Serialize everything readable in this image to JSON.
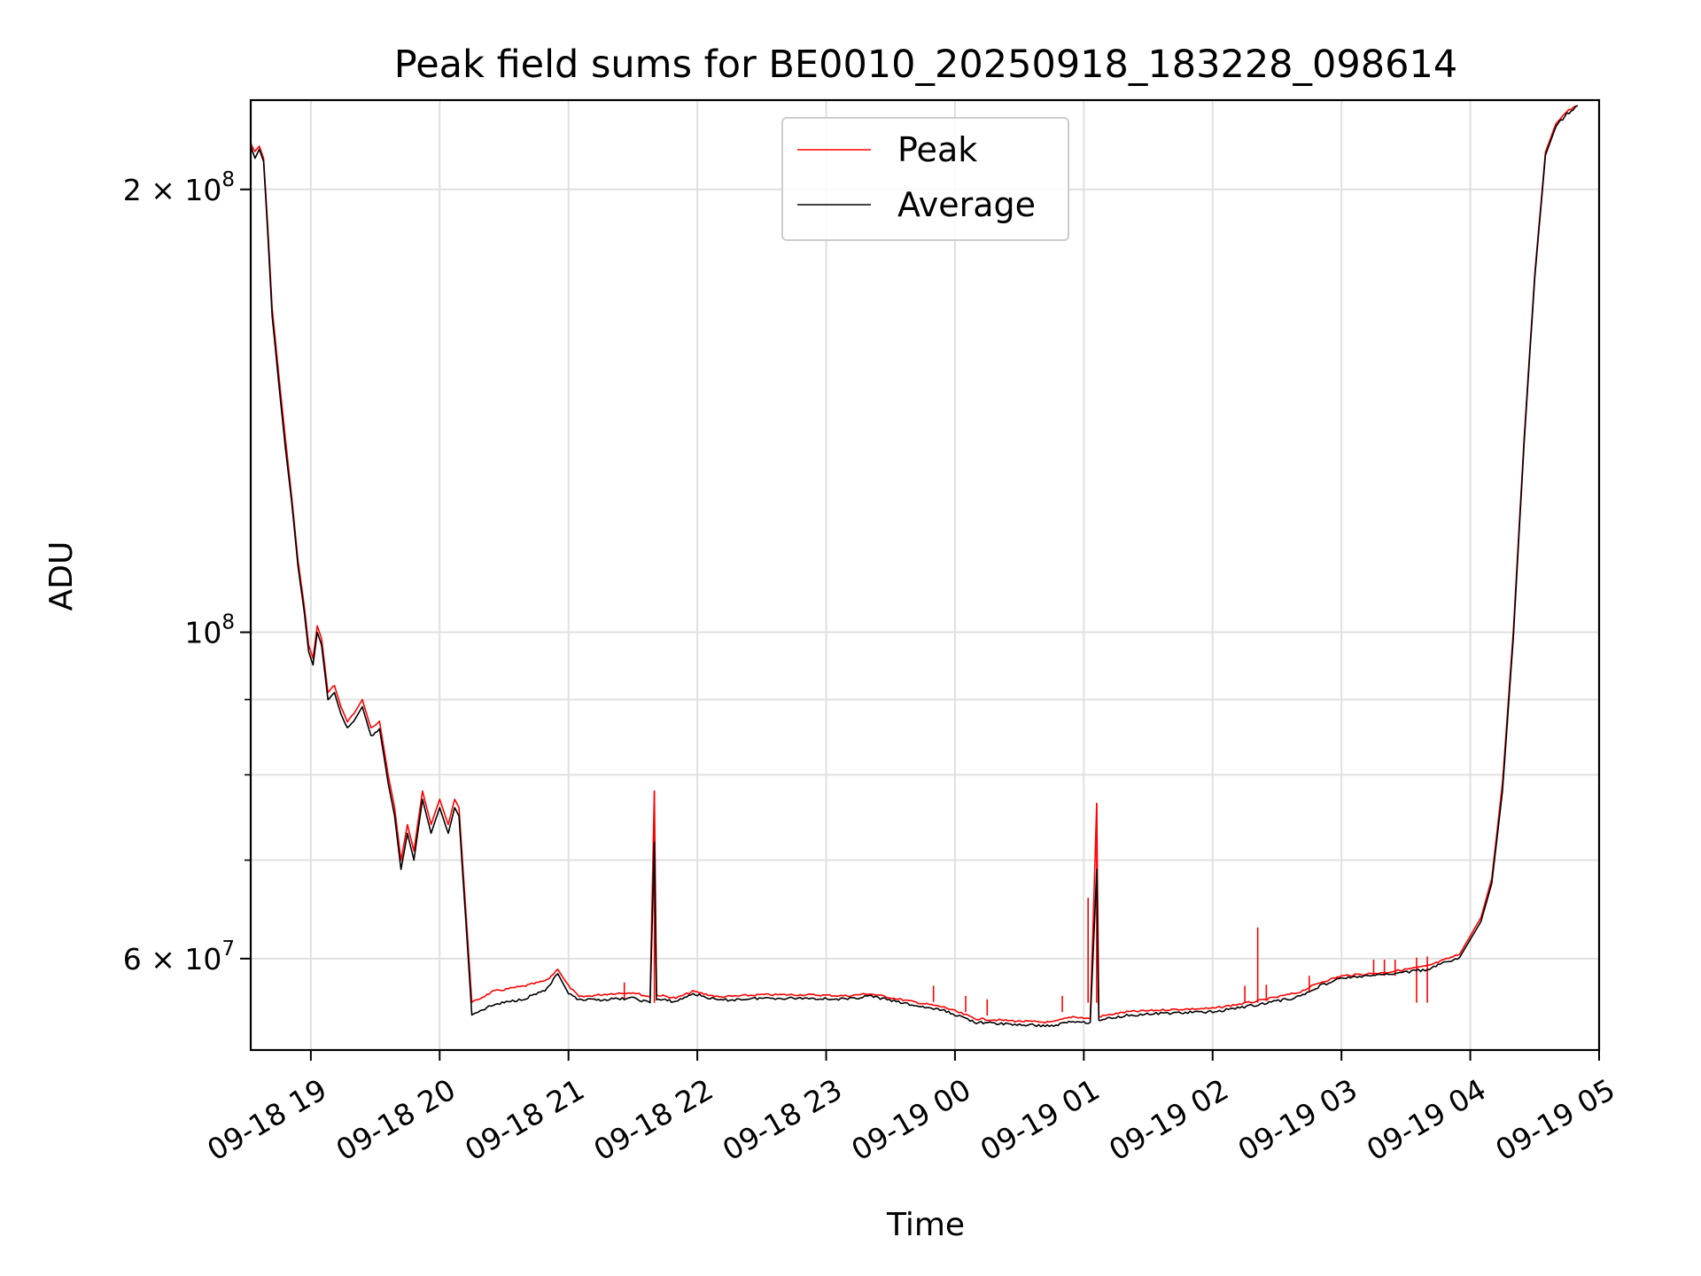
{
  "chart_data": {
    "type": "line",
    "title": "Peak field sums for BE0010_20250918_183228_098614",
    "xlabel": "Time",
    "ylabel": "ADU",
    "y_scale": "log",
    "ylim": [
      52000000,
      230000000
    ],
    "xlim": [
      "09-18 18:32",
      "09-19 05:00"
    ],
    "grid": true,
    "legend_position": "upper center",
    "x_ticks": [
      "09-18 19",
      "09-18 20",
      "09-18 21",
      "09-18 22",
      "09-18 23",
      "09-19 00",
      "09-19 01",
      "09-19 02",
      "09-19 03",
      "09-19 04",
      "09-19 05"
    ],
    "y_ticks": [
      {
        "value": 200000000,
        "label_main": "2 × 10",
        "label_exp": "8"
      },
      {
        "value": 100000000,
        "label_main": "10",
        "label_exp": "8"
      },
      {
        "value": 60000000,
        "label_main": "6 × 10",
        "label_exp": "7"
      }
    ],
    "y_minor_ticks": [
      70000000,
      80000000,
      90000000
    ],
    "series": [
      {
        "name": "Peak",
        "color": "#ff0000",
        "points": [
          [
            "09-18 18:32",
            215000000
          ],
          [
            "09-18 18:34",
            212000000
          ],
          [
            "09-18 18:36",
            214000000
          ],
          [
            "09-18 18:38",
            210000000
          ],
          [
            "09-18 18:40",
            188000000
          ],
          [
            "09-18 18:42",
            166000000
          ],
          [
            "09-18 18:45",
            150000000
          ],
          [
            "09-18 18:48",
            136000000
          ],
          [
            "09-18 18:51",
            124000000
          ],
          [
            "09-18 18:54",
            112000000
          ],
          [
            "09-18 18:57",
            104000000
          ],
          [
            "09-18 18:59",
            98000000
          ],
          [
            "09-18 19:01",
            96000000
          ],
          [
            "09-18 19:03",
            101000000
          ],
          [
            "09-18 19:05",
            99000000
          ],
          [
            "09-18 19:08",
            91000000
          ],
          [
            "09-18 19:11",
            92000000
          ],
          [
            "09-18 19:14",
            89000000
          ],
          [
            "09-18 19:17",
            87000000
          ],
          [
            "09-18 19:20",
            88000000
          ],
          [
            "09-18 19:24",
            90000000
          ],
          [
            "09-18 19:28",
            86000000
          ],
          [
            "09-18 19:32",
            87000000
          ],
          [
            "09-18 19:36",
            80000000
          ],
          [
            "09-18 19:39",
            76000000
          ],
          [
            "09-18 19:42",
            70000000
          ],
          [
            "09-18 19:45",
            74000000
          ],
          [
            "09-18 19:48",
            71000000
          ],
          [
            "09-18 19:52",
            78000000
          ],
          [
            "09-18 19:56",
            74000000
          ],
          [
            "09-18 20:00",
            77000000
          ],
          [
            "09-18 20:04",
            74000000
          ],
          [
            "09-18 20:07",
            77000000
          ],
          [
            "09-18 20:09",
            76000000
          ],
          [
            "09-18 20:15",
            56000000
          ],
          [
            "09-18 20:25",
            57000000
          ],
          [
            "09-18 20:40",
            57500000
          ],
          [
            "09-18 20:50",
            58000000
          ],
          [
            "09-18 20:55",
            59000000
          ],
          [
            "09-18 21:00",
            57500000
          ],
          [
            "09-18 21:05",
            56500000
          ],
          [
            "09-18 21:20",
            56800000
          ],
          [
            "09-18 21:30",
            56900000
          ],
          [
            "09-18 21:38",
            56500000
          ],
          [
            "09-18 21:40",
            78000000
          ],
          [
            "09-18 21:41",
            56700000
          ],
          [
            "09-18 21:50",
            56400000
          ],
          [
            "09-18 21:58",
            57000000
          ],
          [
            "09-18 22:10",
            56500000
          ],
          [
            "09-18 22:30",
            56700000
          ],
          [
            "09-18 22:50",
            56700000
          ],
          [
            "09-18 23:10",
            56600000
          ],
          [
            "09-18 23:20",
            56800000
          ],
          [
            "09-18 23:40",
            56100000
          ],
          [
            "09-18 23:55",
            55600000
          ],
          [
            "09-19 00:10",
            54600000
          ],
          [
            "09-19 00:30",
            54400000
          ],
          [
            "09-19 00:45",
            54300000
          ],
          [
            "09-19 00:55",
            54800000
          ],
          [
            "09-19 01:03",
            54600000
          ],
          [
            "09-19 01:06",
            76500000
          ],
          [
            "09-19 01:07",
            54800000
          ],
          [
            "09-19 01:20",
            55200000
          ],
          [
            "09-19 01:40",
            55400000
          ],
          [
            "09-19 02:00",
            55500000
          ],
          [
            "09-19 02:20",
            56100000
          ],
          [
            "09-19 02:40",
            56900000
          ],
          [
            "09-19 02:50",
            57800000
          ],
          [
            "09-19 03:00",
            58400000
          ],
          [
            "09-19 03:20",
            58700000
          ],
          [
            "09-19 03:40",
            59300000
          ],
          [
            "09-19 03:55",
            60400000
          ],
          [
            "09-19 04:05",
            64000000
          ],
          [
            "09-19 04:10",
            68000000
          ],
          [
            "09-19 04:15",
            79000000
          ],
          [
            "09-19 04:20",
            100000000
          ],
          [
            "09-19 04:25",
            135000000
          ],
          [
            "09-19 04:30",
            175000000
          ],
          [
            "09-19 04:35",
            212000000
          ],
          [
            "09-19 04:40",
            222000000
          ],
          [
            "09-19 04:45",
            226000000
          ],
          [
            "09-19 04:50",
            228000000
          ]
        ],
        "spikes": [
          [
            "09-18 21:40",
            78000000
          ],
          [
            "09-19 01:06",
            76500000
          ],
          [
            "09-19 01:02",
            66000000
          ],
          [
            "09-19 02:21",
            63000000
          ],
          [
            "09-18 21:26",
            57800000
          ],
          [
            "09-18 23:50",
            57500000
          ],
          [
            "09-19 00:05",
            56600000
          ],
          [
            "09-19 00:15",
            56300000
          ],
          [
            "09-19 00:50",
            56600000
          ],
          [
            "09-19 02:15",
            57500000
          ],
          [
            "09-19 02:25",
            57600000
          ],
          [
            "09-19 02:45",
            58400000
          ],
          [
            "09-19 03:15",
            59900000
          ],
          [
            "09-19 03:20",
            59900000
          ],
          [
            "09-19 03:25",
            59900000
          ],
          [
            "09-19 03:35",
            60100000
          ],
          [
            "09-19 03:40",
            60200000
          ]
        ]
      },
      {
        "name": "Average",
        "color": "#000000",
        "points": [
          [
            "09-18 18:32",
            214000000
          ],
          [
            "09-18 18:34",
            210000000
          ],
          [
            "09-18 18:36",
            213000000
          ],
          [
            "09-18 18:38",
            209000000
          ],
          [
            "09-18 18:40",
            186000000
          ],
          [
            "09-18 18:42",
            164000000
          ],
          [
            "09-18 18:45",
            148000000
          ],
          [
            "09-18 18:48",
            134000000
          ],
          [
            "09-18 18:51",
            123000000
          ],
          [
            "09-18 18:54",
            111000000
          ],
          [
            "09-18 18:57",
            103000000
          ],
          [
            "09-18 18:59",
            97000000
          ],
          [
            "09-18 19:01",
            95000000
          ],
          [
            "09-18 19:03",
            100000000
          ],
          [
            "09-18 19:05",
            98000000
          ],
          [
            "09-18 19:08",
            90000000
          ],
          [
            "09-18 19:11",
            91000000
          ],
          [
            "09-18 19:14",
            88000000
          ],
          [
            "09-18 19:17",
            86000000
          ],
          [
            "09-18 19:20",
            87000000
          ],
          [
            "09-18 19:24",
            89000000
          ],
          [
            "09-18 19:28",
            85000000
          ],
          [
            "09-18 19:32",
            86000000
          ],
          [
            "09-18 19:36",
            79000000
          ],
          [
            "09-18 19:39",
            75000000
          ],
          [
            "09-18 19:42",
            69000000
          ],
          [
            "09-18 19:45",
            73000000
          ],
          [
            "09-18 19:48",
            70000000
          ],
          [
            "09-18 19:52",
            77000000
          ],
          [
            "09-18 19:56",
            73000000
          ],
          [
            "09-18 20:00",
            76000000
          ],
          [
            "09-18 20:04",
            73000000
          ],
          [
            "09-18 20:07",
            76000000
          ],
          [
            "09-18 20:09",
            75000000
          ],
          [
            "09-18 20:15",
            55000000
          ],
          [
            "09-18 20:25",
            55800000
          ],
          [
            "09-18 20:40",
            56400000
          ],
          [
            "09-18 20:50",
            57200000
          ],
          [
            "09-18 20:55",
            58600000
          ],
          [
            "09-18 21:00",
            56800000
          ],
          [
            "09-18 21:05",
            56200000
          ],
          [
            "09-18 21:20",
            56300000
          ],
          [
            "09-18 21:30",
            56400000
          ],
          [
            "09-18 21:38",
            56000000
          ],
          [
            "09-18 21:40",
            72000000
          ],
          [
            "09-18 21:41",
            56300000
          ],
          [
            "09-18 21:50",
            56100000
          ],
          [
            "09-18 21:58",
            56800000
          ],
          [
            "09-18 22:10",
            56200000
          ],
          [
            "09-18 22:30",
            56400000
          ],
          [
            "09-18 22:50",
            56400000
          ],
          [
            "09-18 23:10",
            56300000
          ],
          [
            "09-18 23:20",
            56600000
          ],
          [
            "09-18 23:40",
            55800000
          ],
          [
            "09-18 23:55",
            55300000
          ],
          [
            "09-19 00:10",
            54300000
          ],
          [
            "09-19 00:30",
            54100000
          ],
          [
            "09-19 00:45",
            54000000
          ],
          [
            "09-19 00:55",
            54400000
          ],
          [
            "09-19 01:03",
            54300000
          ],
          [
            "09-19 01:06",
            69000000
          ],
          [
            "09-19 01:07",
            54500000
          ],
          [
            "09-19 01:20",
            54900000
          ],
          [
            "09-19 01:40",
            55100000
          ],
          [
            "09-19 02:00",
            55200000
          ],
          [
            "09-19 02:20",
            55800000
          ],
          [
            "09-19 02:40",
            56500000
          ],
          [
            "09-19 02:50",
            57500000
          ],
          [
            "09-19 03:00",
            58200000
          ],
          [
            "09-19 03:20",
            58500000
          ],
          [
            "09-19 03:40",
            59000000
          ],
          [
            "09-19 03:55",
            60100000
          ],
          [
            "09-19 04:05",
            63600000
          ],
          [
            "09-19 04:10",
            67500000
          ],
          [
            "09-19 04:15",
            78000000
          ],
          [
            "09-19 04:20",
            99000000
          ],
          [
            "09-19 04:25",
            134000000
          ],
          [
            "09-19 04:30",
            174000000
          ],
          [
            "09-19 04:35",
            211000000
          ],
          [
            "09-19 04:40",
            221000000
          ],
          [
            "09-19 04:45",
            225000000
          ],
          [
            "09-19 04:50",
            228000000
          ]
        ]
      }
    ]
  }
}
